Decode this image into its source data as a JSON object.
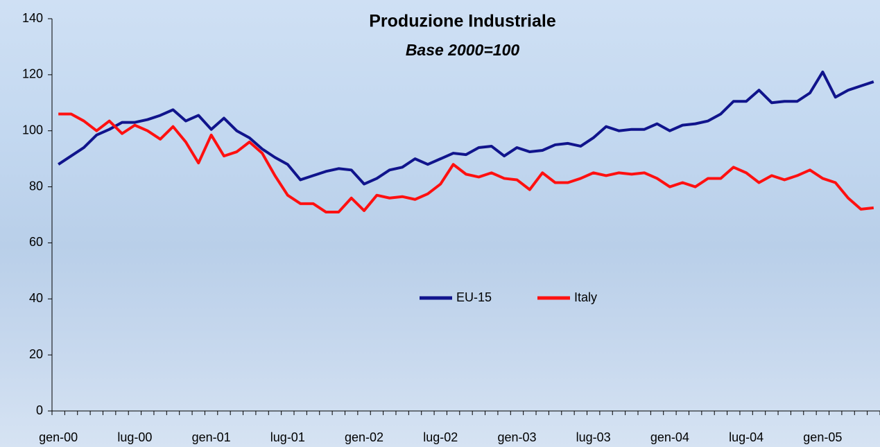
{
  "chart_data": {
    "type": "line",
    "title": "Produzione Industriale",
    "subtitle": "Base 2000=100",
    "categories": [
      "gen-00",
      null,
      null,
      null,
      null,
      null,
      "lug-00",
      null,
      null,
      null,
      null,
      null,
      "gen-01",
      null,
      null,
      null,
      null,
      null,
      "lug-01",
      null,
      null,
      null,
      null,
      null,
      "gen-02",
      null,
      null,
      null,
      null,
      null,
      "lug-02",
      null,
      null,
      null,
      null,
      null,
      "gen-03",
      null,
      null,
      null,
      null,
      null,
      "lug-03",
      null,
      null,
      null,
      null,
      null,
      "gen-04",
      null,
      null,
      null,
      null,
      null,
      "lug-04",
      null,
      null,
      null,
      null,
      null,
      "gen-05",
      null,
      null,
      null,
      null
    ],
    "series": [
      {
        "name": "EU-15",
        "color": "#10148c",
        "values": [
          88,
          91,
          94,
          98.5,
          100.5,
          103,
          103,
          104,
          105.5,
          107.5,
          103.5,
          105.5,
          100.5,
          104.5,
          100,
          97.5,
          93.5,
          90.5,
          88,
          82.5,
          84,
          85.5,
          86.5,
          86,
          81,
          83,
          86,
          87,
          90,
          88,
          90,
          92,
          91.5,
          94,
          94.5,
          91,
          94,
          92.5,
          93,
          95,
          95.5,
          94.5,
          97.5,
          101.5,
          100,
          100.5,
          100.5,
          102.5,
          100,
          102,
          102.5,
          103.5,
          106,
          110.5,
          110.5,
          114.5,
          110,
          110.5,
          110.5,
          113.5,
          121,
          112,
          114.5,
          116,
          117.5
        ]
      },
      {
        "name": "Italy",
        "color": "#ff1010",
        "values": [
          106,
          106,
          103.5,
          100,
          103.5,
          99,
          102,
          100,
          97,
          101.5,
          96,
          88.5,
          98.5,
          91,
          92.5,
          96,
          92,
          84,
          77,
          74,
          74,
          71,
          71,
          76,
          71.5,
          77,
          76,
          76.5,
          75.5,
          77.5,
          81,
          88,
          84.5,
          83.5,
          85,
          83,
          82.5,
          79,
          85,
          81.5,
          81.5,
          83,
          85,
          84,
          85,
          84.5,
          85,
          83,
          80,
          81.5,
          80,
          83,
          83,
          87,
          85,
          81.5,
          84,
          82.5,
          84,
          86,
          83,
          81.5,
          76,
          72,
          72.5
        ]
      }
    ],
    "ylim": [
      0,
      140
    ],
    "yticks": [
      0,
      20,
      40,
      60,
      80,
      100,
      120,
      140
    ],
    "grid": false,
    "legend": "center"
  }
}
